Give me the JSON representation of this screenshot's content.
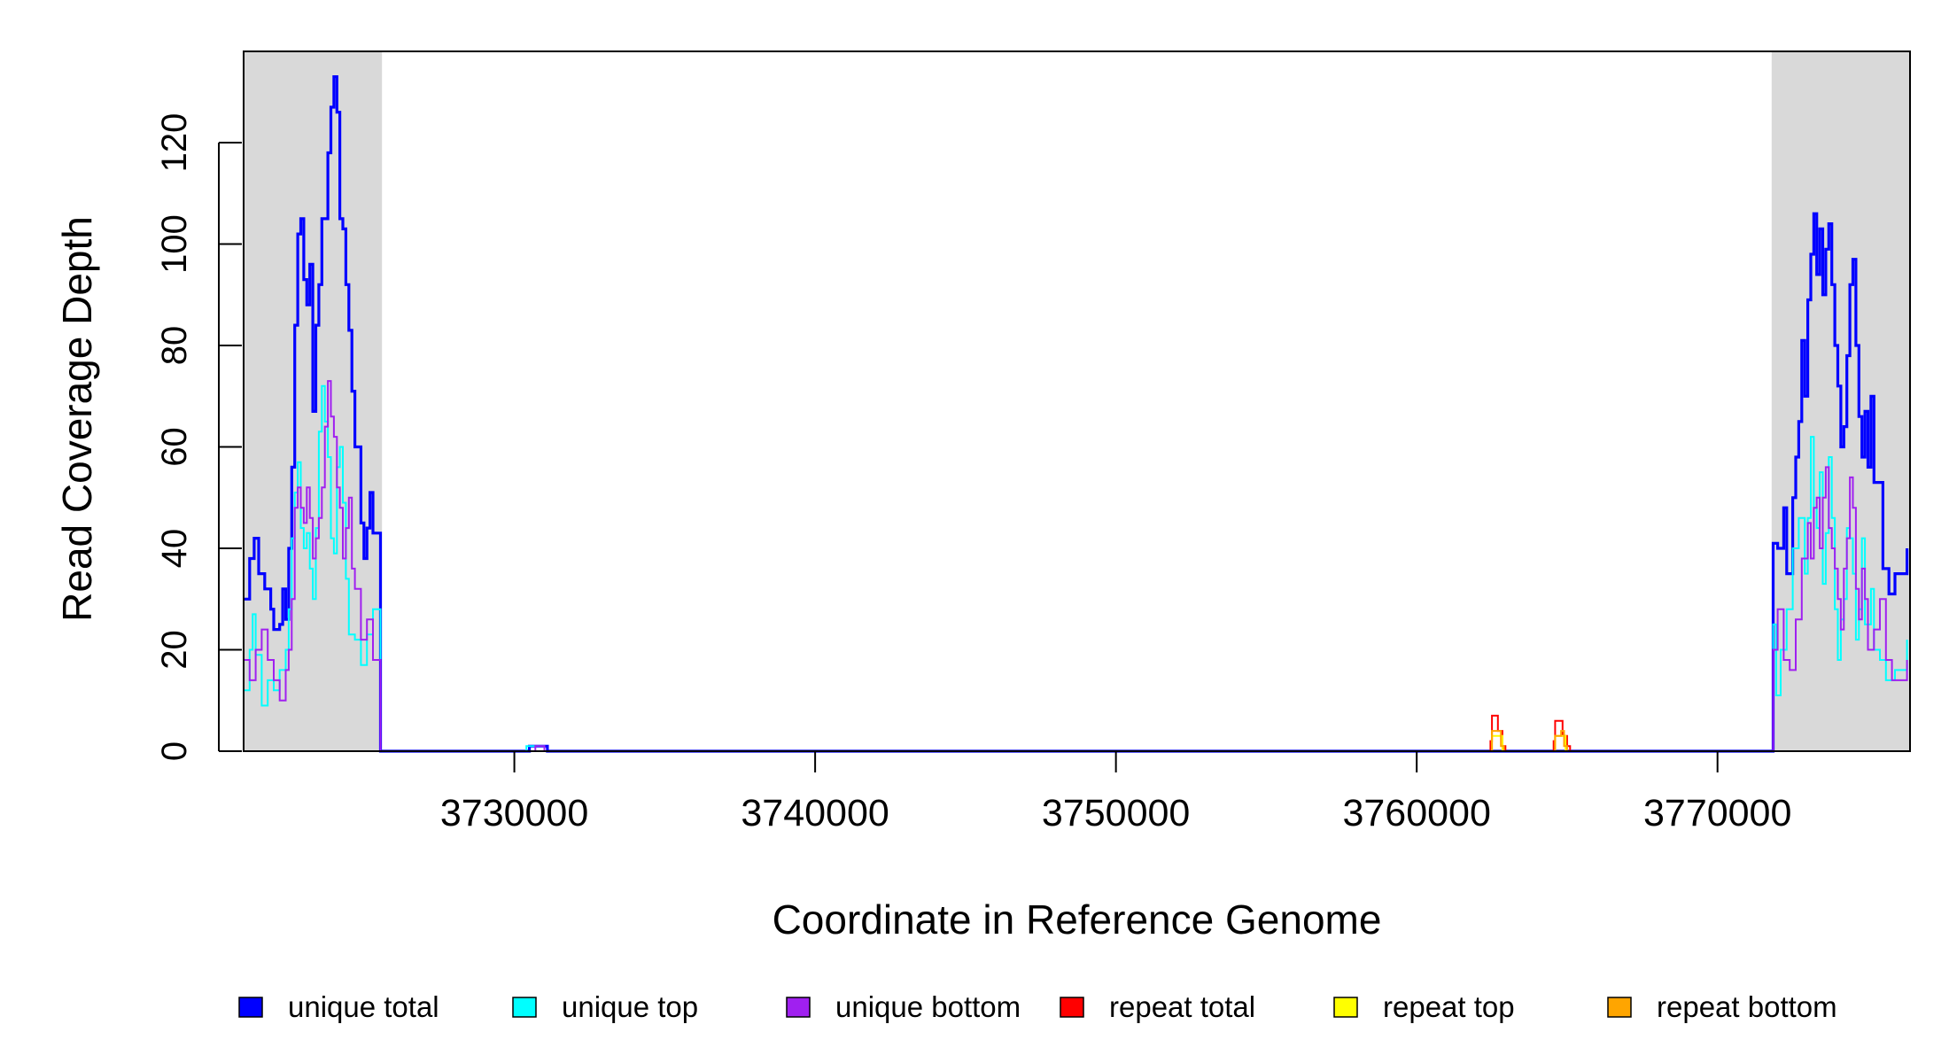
{
  "chart_data": {
    "type": "line",
    "xlabel": "Coordinate in Reference Genome",
    "ylabel": "Read Coverage Depth",
    "xlim": [
      3721000,
      3776400
    ],
    "ylim": [
      0,
      138
    ],
    "x_ticks": [
      3730000,
      3740000,
      3750000,
      3760000,
      3770000
    ],
    "x_tick_labels": [
      "3730000",
      "3740000",
      "3750000",
      "3760000",
      "3770000"
    ],
    "y_ticks": [
      0,
      20,
      40,
      60,
      80,
      100,
      120
    ],
    "y_tick_labels": [
      "0",
      "20",
      "40",
      "60",
      "80",
      "100",
      "120"
    ],
    "grid": false,
    "legend_position": "bottom",
    "shaded_regions": [
      {
        "from": 3721000,
        "to": 3725600,
        "color": "#d9d9d9"
      },
      {
        "from": 3771800,
        "to": 3776400,
        "color": "#d9d9d9"
      }
    ],
    "series": [
      {
        "name": "unique total",
        "color": "#0000ff",
        "points": [
          [
            3721000,
            30
          ],
          [
            3721200,
            38
          ],
          [
            3721350,
            42
          ],
          [
            3721500,
            35
          ],
          [
            3721700,
            32
          ],
          [
            3721900,
            28
          ],
          [
            3722000,
            24
          ],
          [
            3722200,
            25
          ],
          [
            3722300,
            32
          ],
          [
            3722400,
            26
          ],
          [
            3722500,
            40
          ],
          [
            3722600,
            56
          ],
          [
            3722700,
            84
          ],
          [
            3722800,
            102
          ],
          [
            3722900,
            105
          ],
          [
            3723000,
            93
          ],
          [
            3723100,
            88
          ],
          [
            3723200,
            96
          ],
          [
            3723300,
            67
          ],
          [
            3723400,
            84
          ],
          [
            3723500,
            92
          ],
          [
            3723600,
            105
          ],
          [
            3723800,
            118
          ],
          [
            3723900,
            127
          ],
          [
            3724000,
            133
          ],
          [
            3724100,
            126
          ],
          [
            3724200,
            105
          ],
          [
            3724300,
            103
          ],
          [
            3724400,
            92
          ],
          [
            3724500,
            83
          ],
          [
            3724600,
            71
          ],
          [
            3724700,
            60
          ],
          [
            3724900,
            45
          ],
          [
            3725000,
            38
          ],
          [
            3725100,
            44
          ],
          [
            3725200,
            51
          ],
          [
            3725300,
            43
          ],
          [
            3725550,
            0
          ],
          [
            3730400,
            0
          ],
          [
            3730500,
            1
          ],
          [
            3731000,
            1
          ],
          [
            3731100,
            0
          ],
          [
            3771800,
            0
          ],
          [
            3771850,
            41
          ],
          [
            3772000,
            40
          ],
          [
            3772200,
            48
          ],
          [
            3772300,
            35
          ],
          [
            3772500,
            50
          ],
          [
            3772600,
            58
          ],
          [
            3772700,
            65
          ],
          [
            3772800,
            81
          ],
          [
            3772900,
            70
          ],
          [
            3773000,
            89
          ],
          [
            3773100,
            98
          ],
          [
            3773200,
            106
          ],
          [
            3773300,
            94
          ],
          [
            3773400,
            103
          ],
          [
            3773500,
            90
          ],
          [
            3773600,
            99
          ],
          [
            3773700,
            104
          ],
          [
            3773800,
            92
          ],
          [
            3773900,
            80
          ],
          [
            3774000,
            72
          ],
          [
            3774100,
            60
          ],
          [
            3774200,
            64
          ],
          [
            3774300,
            78
          ],
          [
            3774400,
            92
          ],
          [
            3774500,
            97
          ],
          [
            3774600,
            80
          ],
          [
            3774700,
            66
          ],
          [
            3774800,
            58
          ],
          [
            3774900,
            67
          ],
          [
            3775000,
            56
          ],
          [
            3775100,
            70
          ],
          [
            3775200,
            53
          ],
          [
            3775500,
            36
          ],
          [
            3775700,
            31
          ],
          [
            3775900,
            35
          ],
          [
            3776300,
            40
          ]
        ]
      },
      {
        "name": "unique top",
        "color": "#00ffff",
        "points": [
          [
            3721000,
            12
          ],
          [
            3721200,
            20
          ],
          [
            3721300,
            27
          ],
          [
            3721400,
            19
          ],
          [
            3721600,
            9
          ],
          [
            3721800,
            14
          ],
          [
            3722000,
            12
          ],
          [
            3722200,
            16
          ],
          [
            3722400,
            20
          ],
          [
            3722500,
            28
          ],
          [
            3722600,
            42
          ],
          [
            3722700,
            51
          ],
          [
            3722800,
            57
          ],
          [
            3722900,
            44
          ],
          [
            3723000,
            40
          ],
          [
            3723100,
            43
          ],
          [
            3723200,
            36
          ],
          [
            3723300,
            30
          ],
          [
            3723400,
            44
          ],
          [
            3723500,
            63
          ],
          [
            3723600,
            72
          ],
          [
            3723700,
            65
          ],
          [
            3723800,
            58
          ],
          [
            3723900,
            42
          ],
          [
            3724000,
            39
          ],
          [
            3724100,
            56
          ],
          [
            3724200,
            60
          ],
          [
            3724300,
            49
          ],
          [
            3724400,
            34
          ],
          [
            3724500,
            23
          ],
          [
            3724700,
            22
          ],
          [
            3724900,
            17
          ],
          [
            3725100,
            23
          ],
          [
            3725300,
            28
          ],
          [
            3725550,
            0
          ],
          [
            3730300,
            0
          ],
          [
            3730400,
            1
          ],
          [
            3730900,
            1
          ],
          [
            3731000,
            0
          ],
          [
            3771800,
            0
          ],
          [
            3771850,
            25
          ],
          [
            3771950,
            11
          ],
          [
            3772100,
            20
          ],
          [
            3772300,
            28
          ],
          [
            3772500,
            40
          ],
          [
            3772700,
            46
          ],
          [
            3772900,
            35
          ],
          [
            3773000,
            46
          ],
          [
            3773100,
            62
          ],
          [
            3773200,
            48
          ],
          [
            3773300,
            44
          ],
          [
            3773400,
            55
          ],
          [
            3773500,
            33
          ],
          [
            3773600,
            43
          ],
          [
            3773700,
            58
          ],
          [
            3773800,
            46
          ],
          [
            3773900,
            28
          ],
          [
            3774000,
            18
          ],
          [
            3774100,
            26
          ],
          [
            3774200,
            30
          ],
          [
            3774300,
            44
          ],
          [
            3774400,
            42
          ],
          [
            3774500,
            35
          ],
          [
            3774600,
            22
          ],
          [
            3774700,
            28
          ],
          [
            3774800,
            42
          ],
          [
            3774900,
            25
          ],
          [
            3775100,
            32
          ],
          [
            3775200,
            20
          ],
          [
            3775400,
            18
          ],
          [
            3775600,
            14
          ],
          [
            3775900,
            16
          ],
          [
            3776300,
            22
          ]
        ]
      },
      {
        "name": "unique bottom",
        "color": "#a020f0",
        "points": [
          [
            3721000,
            18
          ],
          [
            3721200,
            14
          ],
          [
            3721400,
            20
          ],
          [
            3721600,
            24
          ],
          [
            3721800,
            18
          ],
          [
            3722000,
            14
          ],
          [
            3722200,
            10
          ],
          [
            3722400,
            16
          ],
          [
            3722500,
            20
          ],
          [
            3722600,
            30
          ],
          [
            3722700,
            48
          ],
          [
            3722800,
            52
          ],
          [
            3722900,
            48
          ],
          [
            3723000,
            45
          ],
          [
            3723100,
            52
          ],
          [
            3723200,
            46
          ],
          [
            3723300,
            38
          ],
          [
            3723400,
            42
          ],
          [
            3723500,
            46
          ],
          [
            3723600,
            52
          ],
          [
            3723700,
            64
          ],
          [
            3723800,
            73
          ],
          [
            3723900,
            66
          ],
          [
            3724000,
            62
          ],
          [
            3724100,
            52
          ],
          [
            3724200,
            48
          ],
          [
            3724300,
            38
          ],
          [
            3724400,
            44
          ],
          [
            3724500,
            50
          ],
          [
            3724600,
            36
          ],
          [
            3724700,
            32
          ],
          [
            3724900,
            22
          ],
          [
            3725100,
            26
          ],
          [
            3725300,
            18
          ],
          [
            3725550,
            0
          ],
          [
            3730600,
            0
          ],
          [
            3730700,
            1
          ],
          [
            3730900,
            1
          ],
          [
            3731000,
            0
          ],
          [
            3771800,
            0
          ],
          [
            3771850,
            20
          ],
          [
            3772000,
            28
          ],
          [
            3772200,
            18
          ],
          [
            3772400,
            16
          ],
          [
            3772600,
            26
          ],
          [
            3772800,
            38
          ],
          [
            3773000,
            45
          ],
          [
            3773100,
            38
          ],
          [
            3773200,
            48
          ],
          [
            3773300,
            50
          ],
          [
            3773400,
            40
          ],
          [
            3773500,
            50
          ],
          [
            3773600,
            56
          ],
          [
            3773700,
            44
          ],
          [
            3773800,
            40
          ],
          [
            3773900,
            36
          ],
          [
            3774000,
            30
          ],
          [
            3774100,
            24
          ],
          [
            3774200,
            36
          ],
          [
            3774300,
            42
          ],
          [
            3774400,
            54
          ],
          [
            3774500,
            48
          ],
          [
            3774600,
            32
          ],
          [
            3774700,
            26
          ],
          [
            3774800,
            36
          ],
          [
            3774900,
            30
          ],
          [
            3775000,
            20
          ],
          [
            3775200,
            24
          ],
          [
            3775400,
            30
          ],
          [
            3775600,
            18
          ],
          [
            3775800,
            14
          ],
          [
            3776300,
            18
          ]
        ]
      },
      {
        "name": "repeat total",
        "color": "#ff0000",
        "points": [
          [
            3721000,
            0
          ],
          [
            3762400,
            0
          ],
          [
            3762450,
            2
          ],
          [
            3762500,
            7
          ],
          [
            3762650,
            7
          ],
          [
            3762700,
            4
          ],
          [
            3762850,
            1
          ],
          [
            3762950,
            0
          ],
          [
            3764500,
            0
          ],
          [
            3764550,
            2
          ],
          [
            3764600,
            6
          ],
          [
            3764800,
            6
          ],
          [
            3764850,
            3
          ],
          [
            3765000,
            1
          ],
          [
            3765100,
            0
          ],
          [
            3776400,
            0
          ]
        ]
      },
      {
        "name": "repeat top",
        "color": "#ffff00",
        "points": [
          [
            3721000,
            0
          ],
          [
            3762450,
            0
          ],
          [
            3762500,
            3
          ],
          [
            3762700,
            3
          ],
          [
            3762850,
            0
          ],
          [
            3764550,
            0
          ],
          [
            3764600,
            3
          ],
          [
            3764800,
            3
          ],
          [
            3764950,
            0
          ],
          [
            3776400,
            0
          ]
        ]
      },
      {
        "name": "repeat bottom",
        "color": "#ffa500",
        "points": [
          [
            3721000,
            0
          ],
          [
            3762450,
            0
          ],
          [
            3762500,
            4
          ],
          [
            3762700,
            4
          ],
          [
            3762800,
            1
          ],
          [
            3762900,
            0
          ],
          [
            3764550,
            0
          ],
          [
            3764600,
            3
          ],
          [
            3764800,
            4
          ],
          [
            3764900,
            1
          ],
          [
            3765000,
            0
          ],
          [
            3776400,
            0
          ]
        ]
      }
    ]
  }
}
